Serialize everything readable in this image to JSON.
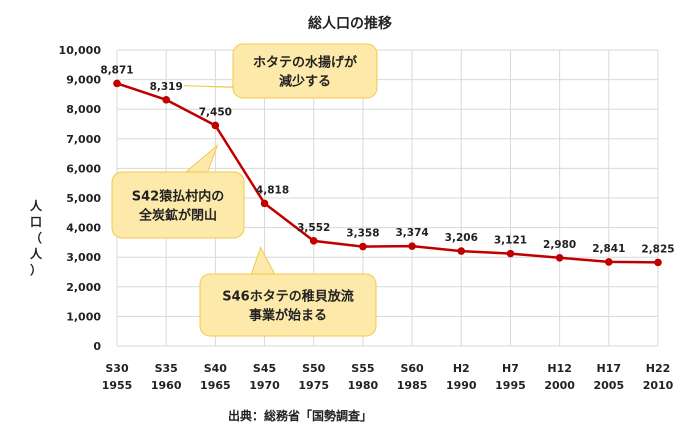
{
  "chart_data": {
    "type": "line",
    "title": "総人口の推移",
    "ylabel": "人口（人）",
    "xlabel": "",
    "ylim": [
      0,
      10000
    ],
    "ytick_step": 1000,
    "grid": "horizontal",
    "categories": [
      [
        "S30",
        "1955"
      ],
      [
        "S35",
        "1960"
      ],
      [
        "S40",
        "1965"
      ],
      [
        "S45",
        "1970"
      ],
      [
        "S50",
        "1975"
      ],
      [
        "S55",
        "1980"
      ],
      [
        "S60",
        "1985"
      ],
      [
        "H2",
        "1990"
      ],
      [
        "H7",
        "1995"
      ],
      [
        "H12",
        "2000"
      ],
      [
        "H17",
        "2005"
      ],
      [
        "H22",
        "2010"
      ]
    ],
    "series": [
      {
        "values": [
          8871,
          8319,
          7450,
          4818,
          3552,
          3358,
          3374,
          3206,
          3121,
          2980,
          2841,
          2825
        ],
        "color": "#c00000"
      }
    ],
    "data_labels": [
      "8,871",
      "8,319",
      "7,450",
      "4,818",
      "3,552",
      "3,358",
      "3,374",
      "3,206",
      "3,121",
      "2,980",
      "2,841",
      "2,825"
    ],
    "y_tick_labels": [
      "0",
      "1,000",
      "2,000",
      "3,000",
      "4,000",
      "5,000",
      "6,000",
      "7,000",
      "8,000",
      "9,000",
      "10,000"
    ],
    "annotations": [
      {
        "lines": [
          "ホタテの水揚げが",
          "減少する"
        ],
        "points_to": 1
      },
      {
        "lines": [
          "S42猿払村内の",
          "全炭鉱が閉山"
        ],
        "points_to": 2
      },
      {
        "lines": [
          "S46ホタテの稚貝放流",
          "事業が始まる"
        ],
        "points_to": 3
      }
    ],
    "source": "出典：総務省「国勢調査」"
  },
  "colors": {
    "line": "#c00000",
    "grid": "#d9d9d9",
    "callout_fill": "#fde9a9",
    "callout_stroke": "#f2c94c"
  }
}
